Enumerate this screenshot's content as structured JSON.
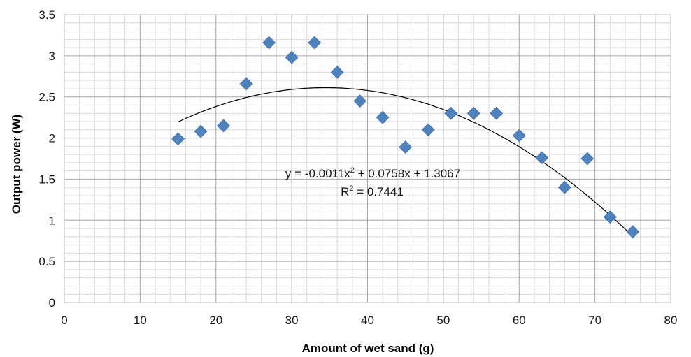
{
  "chart_data": {
    "type": "scatter",
    "xlabel": "Amount of wet sand (g)",
    "ylabel": "Output power (W)",
    "xlim": [
      0,
      80
    ],
    "ylim": [
      0,
      3.5
    ],
    "x_ticks": [
      "0",
      "10",
      "20",
      "30",
      "40",
      "50",
      "60",
      "70",
      "80"
    ],
    "y_ticks": [
      "0",
      "0.5",
      "1",
      "1.5",
      "2",
      "2.5",
      "3",
      "3.5"
    ],
    "grid": true,
    "marker_color": "#4f81bd",
    "points": [
      {
        "x": 15,
        "y": 1.99
      },
      {
        "x": 18,
        "y": 2.08
      },
      {
        "x": 21,
        "y": 2.15
      },
      {
        "x": 24,
        "y": 2.66
      },
      {
        "x": 27,
        "y": 3.16
      },
      {
        "x": 30,
        "y": 2.98
      },
      {
        "x": 33,
        "y": 3.16
      },
      {
        "x": 36,
        "y": 2.8
      },
      {
        "x": 39,
        "y": 2.45
      },
      {
        "x": 42,
        "y": 2.25
      },
      {
        "x": 45,
        "y": 1.89
      },
      {
        "x": 48,
        "y": 2.1
      },
      {
        "x": 51,
        "y": 2.3
      },
      {
        "x": 54,
        "y": 2.3
      },
      {
        "x": 57,
        "y": 2.3
      },
      {
        "x": 60,
        "y": 2.03
      },
      {
        "x": 63,
        "y": 1.76
      },
      {
        "x": 66,
        "y": 1.4
      },
      {
        "x": 69,
        "y": 1.75
      },
      {
        "x": 72,
        "y": 1.04
      },
      {
        "x": 75,
        "y": 0.86
      }
    ],
    "trendline": {
      "type": "polynomial",
      "coefficients": [
        -0.0011,
        0.0758,
        1.3067
      ],
      "x_range": [
        15,
        75
      ],
      "equation_prefix": "y = -0.0011x",
      "equation_sup": "2",
      "equation_suffix": " + 0.0758x + 1.3067",
      "r2_prefix": "R",
      "r2_sup": "2",
      "r2_suffix": " = 0.7441"
    }
  }
}
